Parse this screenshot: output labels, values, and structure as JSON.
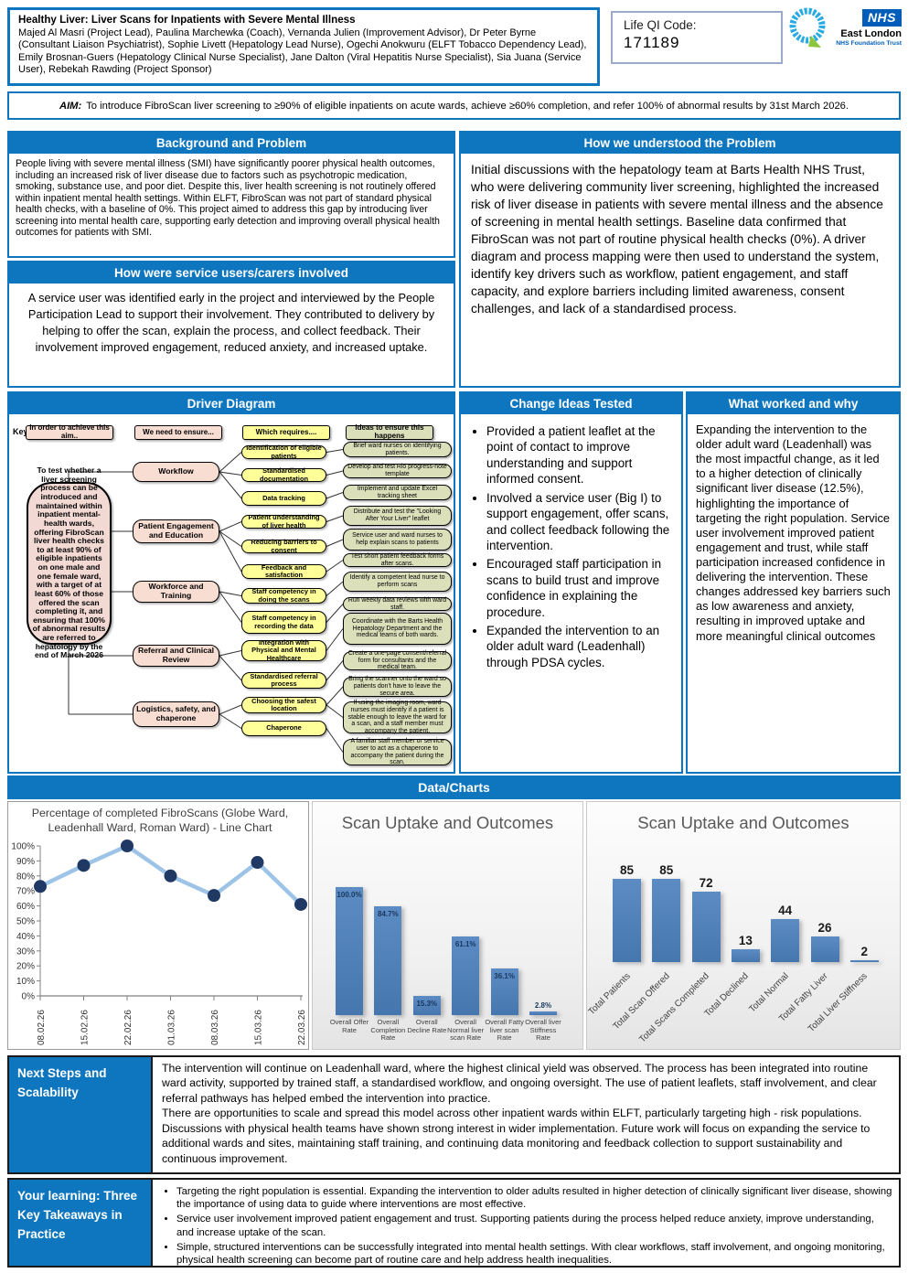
{
  "theme": {
    "accent_blue": "#0e76bf",
    "nhs_blue": "#005EB8",
    "bar_color": "#4f81bd",
    "line_color": "#9dc3e6",
    "marker_color": "#1f3864"
  },
  "header": {
    "title": "Healthy Liver: Liver Scans for Inpatients with Severe Mental Illness",
    "team": "Majed Al Masri (Project Lead), Paulina Marchewka (Coach), Vernanda Julien (Improvement Advisor), Dr Peter Byrne (Consultant Liaison Psychiatrist), Sophie Livett (Hepatology Lead Nurse), Ogechi Anokwuru (ELFT Tobacco Dependency Lead), Emily Brosnan-Guers (Hepatology Clinical Nurse Specialist), Jane Dalton (Viral Hepatitis Nurse Specialist), Sia Juana (Service User), Rebekah Rawding (Project Sponsor)",
    "life_qi_label": "Life QI Code:",
    "life_qi_code": "171189",
    "nhs_logo": "NHS",
    "trust_name": "East London",
    "trust_sub": "NHS Foundation Trust",
    "q_badge_icon": "q-improvement-badge-icon"
  },
  "aim": {
    "label": "AIM:",
    "text": "To introduce FibroScan liver screening to ≥90% of eligible inpatients on acute wards, achieve ≥60% completion, and refer 100% of abnormal results by 31st March 2026."
  },
  "background": {
    "title": "Background and Problem",
    "body": "People living with severe mental illness (SMI) have significantly poorer physical health outcomes, including an increased risk of liver disease due to factors such as psychotropic medication, smoking, substance use, and poor diet. Despite this, liver health screening is not routinely offered within inpatient mental health settings. Within ELFT, FibroScan was not part of standard physical health checks, with a baseline of 0%. This project aimed to address this gap by introducing liver screening into mental health care, supporting early detection and improving overall physical health outcomes for patients with SMI."
  },
  "service_users": {
    "title": "How were service users/carers involved",
    "body": "A service user was identified early in the project and interviewed by the People Participation Lead to support their involvement. They contributed to delivery by helping to offer the scan, explain the process, and collect feedback. Their involvement improved engagement, reduced anxiety, and increased uptake."
  },
  "understood": {
    "title": "How we understood the Problem",
    "body": "Initial discussions with the hepatology team at Barts Health NHS Trust, who were delivering community liver screening, highlighted the increased risk of liver disease in patients with severe mental illness and the absence of screening in mental health settings. Baseline data confirmed that FibroScan was not part of routine physical health checks (0%). A driver diagram and process mapping were then used to understand the system, identify key drivers such as workflow, patient engagement, and staff capacity, and explore barriers including limited awareness, consent challenges, and lack of a standardised process."
  },
  "driver_diagram": {
    "title": "Driver Diagram",
    "key_label": "Key:",
    "key": [
      "In order to achieve this aim..",
      "We need to ensure...",
      "Which requires....",
      "Ideas to ensure this happens"
    ],
    "aim": "To test whether a liver screening process can be introduced and maintained within inpatient mental-health wards, offering FibroScan liver health checks to at least 90% of eligible inpatients on one male and one female ward, with a target of at least 60% of those offered the scan completing it, and ensuring that 100% of abnormal results are referred to hepatology by the end of March 2026",
    "primary": [
      "Workflow",
      "Patient Engagement and Education",
      "Workforce and Training",
      "Referral and Clinical Review",
      "Logistics, safety, and chaperone"
    ],
    "secondary": [
      "Identification of eligible patients",
      "Standardised documentation",
      "Data tracking",
      "Patient understanding of liver health",
      "Reducing barriers to consent",
      "Feedback and satisfaction",
      "Staff competency in doing the scans",
      "Staff competency in recording the data",
      "Integration with Physical and Mental Healthcare",
      "Standardised referral process",
      "Choosing the safest location",
      "Chaperone"
    ],
    "ideas": [
      "Brief ward nurses on identifying patients.",
      "Develop and test Rio progress-note template",
      "Implement and update Excel tracking sheet",
      "Distribute and test the \"Looking After Your Liver\" leaflet",
      "Service user and ward nurses to help explain scans to patients",
      "Test short patient feedback forms after scans.",
      "Identify a competent lead nurse to perform scans",
      "Run weekly data reviews with ward staff.",
      "Coordinate with the Barts Health Hepatology Department and the medical teams of both wards.",
      "Create a one-page consent/referral form for consultants and the medical team.",
      "Bring the scanner onto the ward so patients don't have to leave the secure area.",
      "If using the imaging room, ward nurses must identify if a patient is stable enough to leave the ward for a scan, and a staff member must accompany the patient.",
      "A familiar staff member or service user to act as a chaperone to accompany the patient during the scan."
    ]
  },
  "change_ideas": {
    "title": "Change Ideas Tested",
    "bullets": [
      "Provided a patient leaflet at the point of contact to improve understanding and support informed consent.",
      "Involved a service user (Big I) to support engagement, offer scans, and collect feedback following the intervention.",
      "Encouraged staff participation in scans to build trust and improve confidence in explaining the procedure.",
      "Expanded the intervention to an older adult ward (Leadenhall) through PDSA cycles."
    ]
  },
  "what_worked": {
    "title": "What worked and why",
    "body": "Expanding the intervention to the older adult ward (Leadenhall) was the most impactful change, as it led to a higher detection of clinically significant liver disease (12.5%), highlighting the importance of targeting the right population. Service user involvement improved patient engagement and trust, while staff participation increased confidence in delivering the intervention. These changes addressed key barriers such as low awareness and anxiety, resulting in improved uptake and more meaningful clinical outcomes"
  },
  "data_charts_title": "Data/Charts",
  "chart_data": [
    {
      "type": "line",
      "title": "Percentage of completed FibroScans (Globe Ward, Leadenhall Ward, Roman Ward) - Line Chart",
      "x": [
        "08.02.26",
        "15.02.26",
        "22.02.26",
        "01.03.26",
        "08.03.26",
        "15.03.26",
        "22.03.26"
      ],
      "values": [
        73,
        87,
        100,
        80,
        67,
        89,
        61
      ],
      "ylabel_ticks": [
        "0%",
        "10%",
        "20%",
        "30%",
        "40%",
        "50%",
        "60%",
        "70%",
        "80%",
        "90%",
        "100%"
      ],
      "ylim": [
        0,
        100
      ],
      "grid": false,
      "line_color": "#9dc3e6",
      "marker_color": "#1f3864"
    },
    {
      "type": "bar",
      "title": "Scan Uptake and Outcomes",
      "categories": [
        "Overall Offer Rate",
        "Overall Completion Rate",
        "Overall Decline Rate",
        "Overall Normal liver scan Rate",
        "Overall Fatty liver scan Rate",
        "Overall liver Stiffness Rate"
      ],
      "values": [
        100.0,
        84.7,
        15.3,
        61.1,
        36.1,
        2.8
      ],
      "labels": [
        "100.0%",
        "84.7%",
        "15.3%",
        "61.1%",
        "36.1%",
        "2.8%"
      ],
      "ylim": [
        0,
        100
      ],
      "bar_color": "#4f81bd"
    },
    {
      "type": "bar",
      "title": "Scan Uptake and Outcomes",
      "categories": [
        "Total Patients",
        "Total Scan Offered",
        "Total Scans Completed",
        "Total Declined",
        "Total Normal",
        "Total Fatty Liver",
        "Total Liver Stiffness"
      ],
      "values": [
        85,
        85,
        72,
        13,
        44,
        26,
        2
      ],
      "labels": [
        "85",
        "85",
        "72",
        "13",
        "44",
        "26",
        "2"
      ],
      "ylim": [
        0,
        90
      ],
      "bar_color": "#4f81bd",
      "rotated_labels": true
    }
  ],
  "next_steps": {
    "label": "Next Steps and Scalability",
    "body": "The intervention will continue on Leadenhall ward, where the highest clinical yield was observed. The process has been integrated into routine ward activity, supported by trained staff, a standardised workflow, and ongoing oversight. The use of patient leaflets, staff involvement, and clear referral pathways has helped embed the intervention into practice.\nThere are opportunities to scale and spread this model across other inpatient wards within ELFT, particularly targeting high - risk populations. Discussions with physical health teams have shown strong interest in wider implementation. Future work will focus on expanding the service to additional wards and sites, maintaining staff training, and continuing data monitoring and feedback collection to support sustainability and continuous improvement."
  },
  "learning": {
    "label": "Your learning: Three Key Takeaways in Practice",
    "bullets": [
      "Targeting the right population is essential. Expanding the intervention to older adults resulted in higher detection of clinically significant liver disease, showing the importance of using data to guide where interventions are most effective.",
      "Service user involvement improved patient engagement and trust. Supporting patients during the process helped reduce anxiety, improve understanding, and increase uptake of the scan.",
      "Simple, structured interventions can be successfully integrated into mental health settings. With clear workflows, staff involvement, and ongoing monitoring, physical health screening can become part of routine care and help address health inequalities."
    ]
  }
}
